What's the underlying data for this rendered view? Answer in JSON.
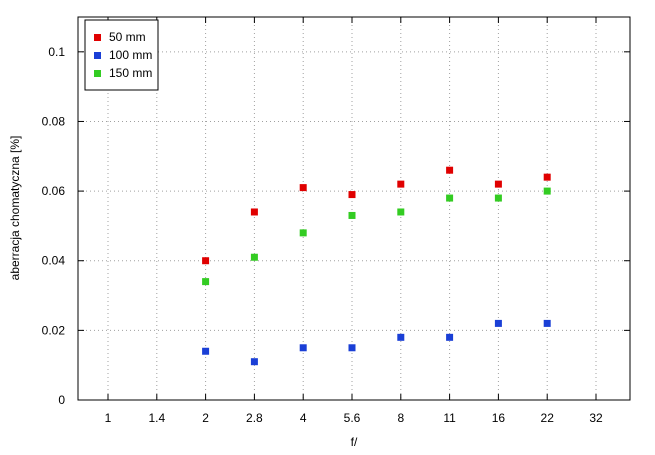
{
  "chart_data": {
    "type": "scatter",
    "xlabel": "f/",
    "ylabel": "aberracja chomatyczna [%]",
    "x_ticks": [
      "1",
      "1.4",
      "2",
      "2.8",
      "4",
      "5.6",
      "8",
      "11",
      "16",
      "22",
      "32"
    ],
    "y_ticks": [
      "0",
      "0.02",
      "0.04",
      "0.06",
      "0.08",
      "0.1"
    ],
    "ylim": [
      0,
      0.11
    ],
    "grid": true,
    "legend_position": "top-left",
    "series": [
      {
        "name": "50 mm",
        "color": "#e00000",
        "x": [
          "2",
          "2.8",
          "4",
          "5.6",
          "8",
          "11",
          "16",
          "22"
        ],
        "values": [
          0.04,
          0.054,
          0.061,
          0.059,
          0.062,
          0.066,
          0.062,
          0.064
        ]
      },
      {
        "name": "100 mm",
        "color": "#1a3fd6",
        "x": [
          "2",
          "2.8",
          "4",
          "5.6",
          "8",
          "11",
          "16",
          "22"
        ],
        "values": [
          0.014,
          0.011,
          0.015,
          0.015,
          0.018,
          0.018,
          0.022,
          0.022
        ]
      },
      {
        "name": "150 mm",
        "color": "#33cc22",
        "x": [
          "2",
          "2.8",
          "4",
          "5.6",
          "8",
          "11",
          "16",
          "22"
        ],
        "values": [
          0.034,
          0.041,
          0.048,
          0.053,
          0.054,
          0.058,
          0.058,
          0.06
        ]
      }
    ]
  }
}
